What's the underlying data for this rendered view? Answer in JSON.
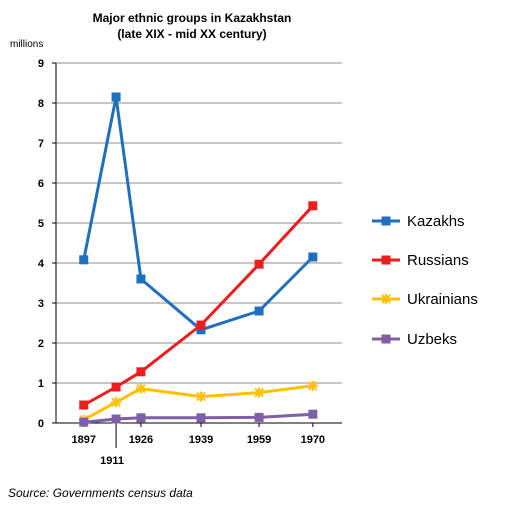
{
  "chart_data": {
    "type": "line",
    "title": "Major ethnic groups in Kazakhstan",
    "subtitle": "(late XIX - mid XX century)",
    "ylabel": "millions",
    "xlabel": "",
    "x": [
      1897,
      1911,
      1926,
      1939,
      1959,
      1970
    ],
    "x_tick_labels": [
      "1897",
      "1911",
      "1926",
      "1939",
      "1959",
      "1970"
    ],
    "ylim": [
      0,
      9
    ],
    "y_ticks": [
      0,
      1,
      2,
      3,
      4,
      5,
      6,
      7,
      8,
      9
    ],
    "grid": "horizontal",
    "legend_position": "right",
    "series": [
      {
        "name": "Kazakhs",
        "color": "#1f6fbf",
        "marker": "square",
        "points": [
          [
            1897,
            4.08
          ],
          [
            1911,
            8.15
          ],
          [
            1926,
            3.6
          ],
          [
            1939,
            2.33
          ],
          [
            1959,
            2.8
          ],
          [
            1970,
            4.15
          ]
        ]
      },
      {
        "name": "Russians",
        "color": "#ee1c1c",
        "marker": "square",
        "points": [
          [
            1897,
            0.45
          ],
          [
            1911,
            0.9
          ],
          [
            1926,
            1.28
          ],
          [
            1939,
            2.45
          ],
          [
            1959,
            3.97
          ],
          [
            1970,
            5.43
          ]
        ]
      },
      {
        "name": "Ukrainians",
        "color": "#ffc000",
        "marker": "asterisk",
        "points": [
          [
            1897,
            0.08
          ],
          [
            1911,
            0.52
          ],
          [
            1926,
            0.86
          ],
          [
            1939,
            0.66
          ],
          [
            1959,
            0.76
          ],
          [
            1970,
            0.93
          ]
        ]
      },
      {
        "name": "Uzbeks",
        "color": "#7f5fa8",
        "marker": "square",
        "points": [
          [
            1897,
            0.02
          ],
          [
            1911,
            0.1
          ],
          [
            1926,
            0.13
          ],
          [
            1939,
            0.13
          ],
          [
            1959,
            0.14
          ],
          [
            1970,
            0.22
          ]
        ]
      }
    ]
  },
  "source": "Source: Governments census data"
}
